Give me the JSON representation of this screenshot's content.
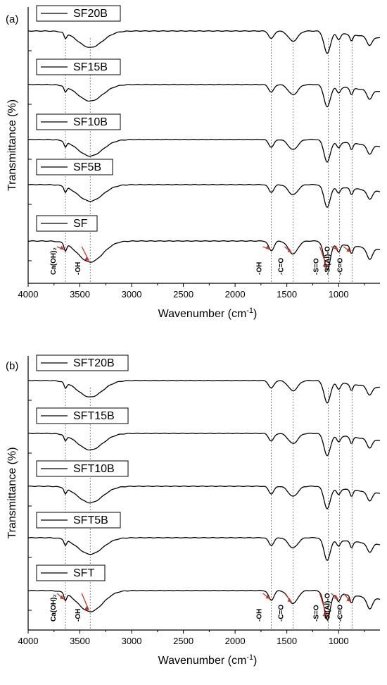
{
  "chart_data": [
    {
      "type": "line",
      "panel_label": "(a)",
      "xlabel": "Wavenumber (cm",
      "xlabel_sup": "-1",
      "xlabel_close": ")",
      "ylabel": "Transmittance (%)",
      "xlim": [
        4000,
        600
      ],
      "x_ticks": [
        4000,
        3500,
        3000,
        2500,
        2000,
        1500,
        1000
      ],
      "reference_lines": [
        3640,
        3400,
        1650,
        1440,
        1100,
        990,
        870
      ],
      "series": [
        {
          "name": "SF20B"
        },
        {
          "name": "SF15B"
        },
        {
          "name": "SF10B"
        },
        {
          "name": "SF5B"
        },
        {
          "name": "SF"
        }
      ],
      "annotations": [
        {
          "text": "Ca(OH)₂",
          "x": 3640
        },
        {
          "text": "-OH",
          "x": 3400
        },
        {
          "text": "-OH",
          "x": 1650
        },
        {
          "text": "-C=O",
          "x": 1440
        },
        {
          "text": "-S=O",
          "x": 1100
        },
        {
          "text": "-Si(Al)-O",
          "x": 990
        },
        {
          "text": "-C=O",
          "x": 870
        }
      ]
    },
    {
      "type": "line",
      "panel_label": "(b)",
      "xlabel": "Wavenumber (cm",
      "xlabel_sup": "-1",
      "xlabel_close": ")",
      "ylabel": "Transmittance (%)",
      "xlim": [
        4000,
        600
      ],
      "x_ticks": [
        4000,
        3500,
        3000,
        2500,
        2000,
        1500,
        1000
      ],
      "reference_lines": [
        3640,
        3400,
        1650,
        1440,
        1100,
        990,
        870
      ],
      "series": [
        {
          "name": "SFT20B"
        },
        {
          "name": "SFT15B"
        },
        {
          "name": "SFT10B"
        },
        {
          "name": "SFT5B"
        },
        {
          "name": "SFT"
        }
      ],
      "annotations": [
        {
          "text": "Ca(OH)₂",
          "x": 3640
        },
        {
          "text": "-OH",
          "x": 3400
        },
        {
          "text": "-OH",
          "x": 1650
        },
        {
          "text": "-C=O",
          "x": 1440
        },
        {
          "text": "-S=O",
          "x": 1100
        },
        {
          "text": "-Si(Al)-O",
          "x": 990
        },
        {
          "text": "-C=O",
          "x": 870
        }
      ]
    }
  ]
}
